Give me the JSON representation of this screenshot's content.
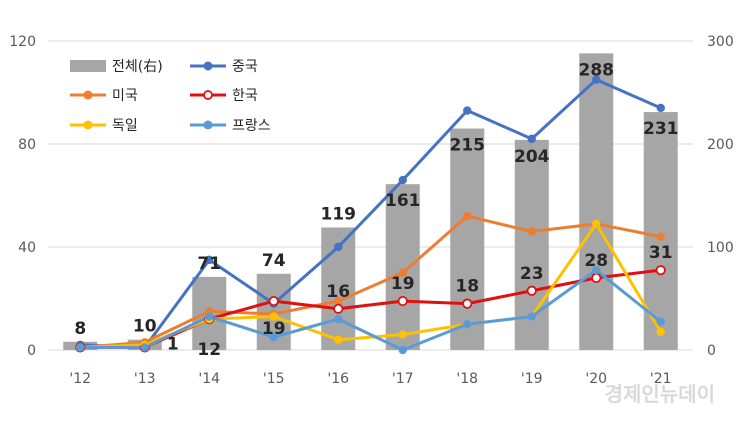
{
  "chart_data": {
    "type": "bar",
    "categories": [
      "'12",
      "'13",
      "'14",
      "'15",
      "'16",
      "'17",
      "'18",
      "'19",
      "'20",
      "'21"
    ],
    "left_axis": {
      "ylim": [
        0,
        120
      ],
      "ticks": [
        "0",
        "40",
        "80",
        "120"
      ]
    },
    "right_axis": {
      "ylim": [
        0,
        300
      ],
      "ticks": [
        "0",
        "100",
        "200",
        "300"
      ]
    },
    "bar_series": {
      "name": "전체(右)",
      "axis": "right",
      "color": "#a6a6a6",
      "values": [
        8,
        10,
        71,
        74,
        119,
        161,
        215,
        204,
        288,
        231
      ]
    },
    "line_series": [
      {
        "name": "중국",
        "axis": "left",
        "color": "#4472c4",
        "marker": "filled",
        "values": [
          2,
          1,
          35,
          18,
          40,
          66,
          93,
          82,
          105,
          94
        ]
      },
      {
        "name": "미국",
        "axis": "left",
        "color": "#ed7d31",
        "marker": "filled",
        "values": [
          1,
          3,
          15,
          14,
          19,
          30,
          52,
          46,
          49,
          44
        ]
      },
      {
        "name": "한국",
        "axis": "left",
        "color": "#e01010",
        "marker": "hollow",
        "values": [
          1,
          1,
          12,
          19,
          16,
          19,
          18,
          23,
          28,
          31
        ]
      },
      {
        "name": "독일",
        "axis": "left",
        "color": "#ffc000",
        "marker": "filled",
        "values": [
          1,
          2,
          12,
          13,
          4,
          6,
          10,
          13,
          49,
          7
        ]
      },
      {
        "name": "프랑스",
        "axis": "left",
        "color": "#5b9bd5",
        "marker": "filled",
        "values": [
          1,
          1,
          13,
          5,
          12,
          0,
          10,
          13,
          31,
          11
        ]
      }
    ],
    "bar_labels": [
      "8",
      "10",
      "71",
      "74",
      "119",
      "161",
      "215",
      "204",
      "288",
      "231"
    ],
    "korea_labels": [
      "",
      "1",
      "12",
      "19",
      "16",
      "19",
      "18",
      "23",
      "28",
      "31"
    ],
    "legend_position": "top-left",
    "grid": true
  },
  "watermark": "경제인뉴데이"
}
